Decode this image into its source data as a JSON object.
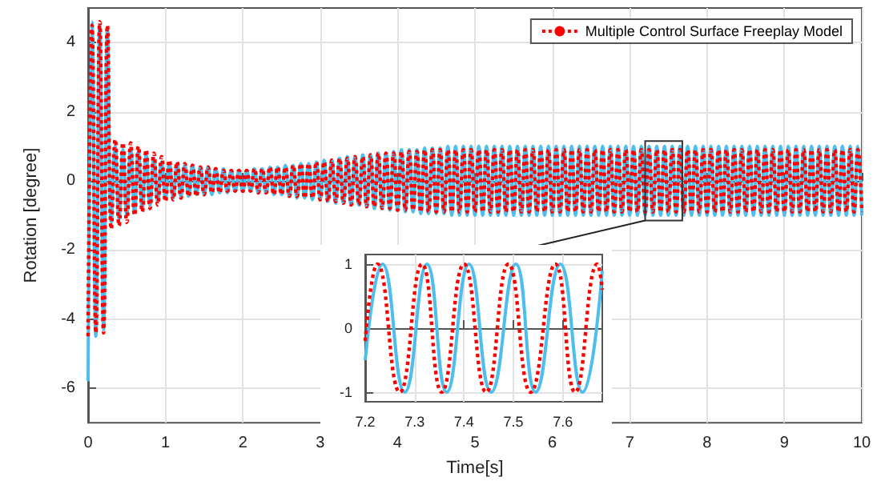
{
  "chart_data": [
    {
      "type": "line",
      "xlabel": "Time[s]",
      "ylabel": "Rotation [degree]",
      "xlim": [
        0,
        10
      ],
      "xticks": [
        0,
        1,
        2,
        3,
        4,
        5,
        6,
        7,
        8,
        9,
        10
      ],
      "ylim": [
        -7,
        5
      ],
      "yticks": [
        -6,
        -4,
        -2,
        0,
        2,
        4
      ],
      "grid": true,
      "legend": "top right",
      "x": [
        0,
        0.05,
        0.1,
        0.15,
        0.2,
        0.25,
        0.3,
        0.35,
        0.4,
        0.45,
        0.5,
        0.55,
        0.6,
        0.65,
        0.7,
        0.75,
        0.8,
        0.85,
        0.9,
        0.95,
        1,
        1.05,
        1.1,
        1.15,
        1.2,
        1.25,
        1.3,
        1.35,
        1.4,
        1.45,
        1.5,
        1.55,
        1.6,
        1.65,
        1.7,
        1.75,
        1.8,
        1.85,
        1.9,
        1.95,
        2,
        2.05,
        2.1,
        2.15,
        2.2,
        2.25,
        2.3,
        2.35,
        2.4,
        2.45,
        2.5,
        2.55,
        2.6,
        2.65,
        2.7,
        2.75,
        2.8,
        2.85,
        2.9,
        2.95,
        3,
        3.05,
        3.1,
        3.15,
        3.2,
        3.25,
        3.3,
        3.35,
        3.4,
        3.45,
        3.5,
        3.55,
        3.6,
        3.65,
        3.7,
        3.75,
        3.8,
        3.85,
        3.9,
        3.95,
        4,
        4.05,
        4.1,
        4.15,
        4.2,
        4.25,
        4.3,
        4.35,
        4.4,
        4.45,
        4.5,
        4.55,
        4.6,
        4.65,
        4.7,
        4.75,
        4.8,
        4.85,
        4.9,
        4.95,
        5,
        5.05,
        5.1,
        5.15,
        5.2,
        5.25,
        5.3,
        5.35,
        5.4,
        5.45,
        5.5,
        5.55,
        5.6,
        5.65,
        5.7,
        5.75,
        5.8,
        5.85,
        5.9,
        5.95,
        6,
        6.05,
        6.1,
        6.15,
        6.2,
        6.25,
        6.3,
        6.35,
        6.4,
        6.45,
        6.5,
        6.55,
        6.6,
        6.65,
        6.7,
        6.75,
        6.8,
        6.85,
        6.9,
        6.95,
        7,
        7.05,
        7.1,
        7.15,
        7.2,
        7.25,
        7.3,
        7.35,
        7.4,
        7.45,
        7.5,
        7.55,
        7.6,
        7.65,
        7.7,
        7.75,
        7.8,
        7.85,
        7.9,
        7.95,
        8,
        8.05,
        8.1,
        8.15,
        8.2,
        8.25,
        8.3,
        8.35,
        8.4,
        8.45,
        8.5,
        8.55,
        8.6,
        8.65,
        8.7,
        8.75,
        8.8,
        8.85,
        8.9,
        8.95,
        9,
        9.05,
        9.1,
        9.15,
        9.2,
        9.25,
        9.3,
        9.35,
        9.4,
        9.45,
        9.5,
        9.55,
        9.6,
        9.65,
        9.7,
        9.75,
        9.8,
        9.85,
        9.9,
        9.95,
        10
      ],
      "series": [
        {
          "color": "#4dbeee",
          "line_style": "solid",
          "values": [
            -5.8,
            4.6,
            -4.5,
            4.5,
            -4.3,
            4.4,
            -1.2,
            1.0,
            -1.1,
            0.9,
            -1.0,
            0.95,
            -0.9,
            0.85,
            -0.8,
            0.75,
            -0.7,
            0.65,
            -0.6,
            0.55,
            -0.5,
            0.5,
            -0.5,
            0.5,
            -0.45,
            0.45,
            -0.45,
            0.45,
            -0.4,
            0.4,
            -0.4,
            0.4,
            -0.4,
            0.35,
            -0.35,
            0.35,
            -0.35,
            0.3,
            -0.3,
            0.3,
            -0.3,
            0.3,
            -0.3,
            0.35,
            -0.35,
            0.35,
            -0.35,
            0.4,
            -0.4,
            0.4,
            -0.4,
            0.45,
            -0.45,
            0.45,
            -0.5,
            0.5,
            -0.5,
            0.5,
            -0.55,
            0.55,
            -0.55,
            0.6,
            -0.6,
            0.6,
            -0.65,
            0.65,
            -0.65,
            0.7,
            -0.7,
            0.7,
            -0.7,
            0.75,
            -0.75,
            0.75,
            -0.8,
            0.8,
            -0.8,
            0.8,
            -0.85,
            0.85,
            -0.85,
            0.9,
            -0.9,
            0.9,
            -0.9,
            0.9,
            -0.95,
            0.95,
            -0.95,
            0.95,
            -0.95,
            0.95,
            -0.95,
            1,
            -1,
            1,
            -1,
            1,
            -1,
            1,
            -1,
            1,
            -1,
            1,
            -1,
            1,
            -1,
            1,
            -1,
            1,
            -1,
            1,
            -1,
            1,
            -1,
            1,
            -1,
            1,
            -1,
            1,
            -1,
            1,
            -1,
            1,
            -1,
            1,
            -1,
            1,
            -1,
            1,
            -1,
            1,
            -1,
            1,
            -1,
            1,
            -1,
            1,
            -1,
            1,
            -1,
            1,
            -1,
            1,
            -1,
            1,
            -1,
            1,
            -1,
            1,
            -1,
            1,
            -1,
            1,
            -1,
            1,
            -1,
            1,
            -1,
            1,
            -1,
            1,
            -1,
            1,
            -1,
            1,
            -1,
            1,
            -1,
            1,
            -1,
            1,
            -1,
            1,
            -1,
            1,
            -1,
            1,
            -1,
            1,
            -1,
            1,
            -1,
            1,
            -1,
            1,
            -1,
            1,
            -1,
            1,
            -1,
            1,
            -1,
            1,
            -1,
            1,
            -1,
            1,
            -1,
            1,
            -1
          ]
        },
        {
          "name": "Multiple Control Surface Freeplay Model",
          "color": "#ff0000",
          "line_style": "dotted",
          "values": [
            -4.5,
            4.5,
            -4.4,
            4.6,
            -4.4,
            4.5,
            -1.4,
            1.2,
            -1.3,
            1.1,
            -1.2,
            1.1,
            -1.0,
            1.0,
            -0.9,
            0.9,
            -0.8,
            0.8,
            -0.7,
            0.7,
            -0.6,
            0.6,
            -0.55,
            0.55,
            -0.5,
            0.5,
            -0.45,
            0.45,
            -0.45,
            0.4,
            -0.4,
            0.4,
            -0.35,
            0.35,
            -0.35,
            0.3,
            -0.3,
            0.3,
            -0.3,
            0.3,
            -0.3,
            0.3,
            -0.3,
            0.35,
            -0.35,
            0.35,
            -0.35,
            0.4,
            -0.4,
            0.4,
            -0.4,
            0.4,
            -0.45,
            0.45,
            -0.45,
            0.5,
            -0.5,
            0.5,
            -0.5,
            0.55,
            -0.55,
            0.55,
            -0.6,
            0.6,
            -0.6,
            0.65,
            -0.65,
            0.65,
            -0.7,
            0.7,
            -0.7,
            0.7,
            -0.75,
            0.75,
            -0.75,
            0.8,
            -0.8,
            0.8,
            -0.8,
            0.8,
            -0.85,
            0.85,
            -0.85,
            0.85,
            -0.85,
            0.85,
            -0.9,
            0.9,
            -0.9,
            0.9,
            -0.9,
            0.9,
            -0.9,
            0.9,
            -0.9,
            0.9,
            -0.9,
            0.9,
            -0.9,
            0.9,
            -0.9,
            0.9,
            -0.9,
            0.9,
            -0.9,
            0.9,
            -0.9,
            0.9,
            -0.9,
            0.9,
            -0.9,
            0.9,
            -0.9,
            0.9,
            -0.9,
            0.9,
            -0.9,
            0.9,
            -0.9,
            0.9,
            -0.9,
            0.9,
            -0.9,
            0.9,
            -0.9,
            0.9,
            -0.9,
            0.9,
            -0.9,
            0.9,
            -0.9,
            0.9,
            -0.9,
            0.9,
            -0.9,
            0.9,
            -0.9,
            0.9,
            -0.9,
            0.9,
            -0.9,
            0.9,
            -0.9,
            0.9,
            -0.9,
            0.9,
            -0.9,
            0.9,
            -0.9,
            0.9,
            -0.9,
            0.9,
            -0.9,
            0.9,
            -0.9,
            0.9,
            -0.9,
            0.9,
            -0.9,
            0.9,
            -0.9,
            0.9,
            -0.9,
            0.9,
            -0.9,
            0.9,
            -0.9,
            0.9,
            -0.9,
            0.9,
            -0.9,
            0.9,
            -0.9,
            0.9,
            -0.9,
            0.9,
            -0.9,
            0.9,
            -0.9,
            0.9,
            -0.9,
            0.9,
            -0.9,
            0.9,
            -0.9,
            0.9,
            -0.9,
            0.9,
            -0.9,
            0.9,
            -0.9,
            0.9,
            -0.9,
            0.9,
            -0.9,
            0.9,
            -0.9,
            0.9,
            -0.9,
            0.9,
            -0.9
          ]
        }
      ]
    },
    {
      "type": "line",
      "xlim": [
        7.2,
        7.68
      ],
      "xticks": [
        7.2,
        7.3,
        7.4,
        7.5,
        7.6
      ],
      "ylim": [
        -1.15,
        1.15
      ],
      "yticks": [
        -1,
        0,
        1
      ],
      "grid": true,
      "series": [
        {
          "color": "#4dbeee",
          "line_style": "solid",
          "x": [
            7.2,
            7.235,
            7.28,
            7.325,
            7.365,
            7.41,
            7.455,
            7.505,
            7.545,
            7.595,
            7.64,
            7.68
          ],
          "values": [
            -0.5,
            1,
            -1,
            1,
            -1,
            1,
            -1,
            1,
            -1,
            1,
            -1,
            0.9
          ]
        },
        {
          "color": "#ff0000",
          "line_style": "dotted",
          "x": [
            7.2,
            7.225,
            7.27,
            7.315,
            7.355,
            7.4,
            7.445,
            7.49,
            7.535,
            7.585,
            7.625,
            7.67,
            7.68
          ],
          "values": [
            -0.2,
            1,
            -1,
            1,
            -1,
            1,
            -1,
            1,
            -1,
            1,
            -1,
            1,
            0.6
          ]
        }
      ]
    }
  ]
}
